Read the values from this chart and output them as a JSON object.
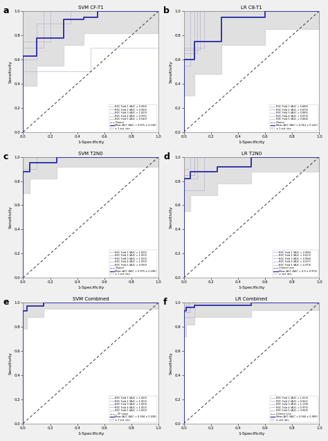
{
  "panels": [
    {
      "label": "a",
      "title": "SVM CF-T1",
      "xlabel": "1-Specificity",
      "ylabel": "Sensitivity",
      "roc_curve": {
        "x": [
          0.0,
          0.0,
          0.1,
          0.1,
          0.3,
          0.3,
          0.45,
          0.45,
          0.55,
          0.55,
          1.0
        ],
        "y": [
          0.0,
          0.63,
          0.63,
          0.78,
          0.78,
          0.93,
          0.93,
          0.95,
          0.95,
          1.0,
          1.0
        ]
      },
      "ci_upper": {
        "x": [
          0.0,
          0.0,
          0.1,
          0.1,
          0.3,
          0.3,
          0.45,
          0.45,
          1.0
        ],
        "y": [
          0.0,
          1.0,
          1.0,
          1.0,
          1.0,
          1.0,
          1.0,
          1.0,
          1.0
        ]
      },
      "ci_lower": {
        "x": [
          0.0,
          0.0,
          0.1,
          0.1,
          0.3,
          0.3,
          0.45,
          0.45,
          1.0
        ],
        "y": [
          0.0,
          0.38,
          0.38,
          0.55,
          0.55,
          0.72,
          0.72,
          0.82,
          0.82
        ]
      },
      "fold_curves": [
        {
          "x": [
            0.0,
            0.0,
            0.15,
            0.15,
            1.0
          ],
          "y": [
            0.0,
            0.7,
            0.7,
            1.0,
            1.0
          ]
        },
        {
          "x": [
            0.0,
            0.0,
            0.1,
            0.1,
            0.35,
            0.35,
            1.0
          ],
          "y": [
            0.0,
            0.6,
            0.6,
            0.9,
            0.9,
            1.0,
            1.0
          ]
        },
        {
          "x": [
            0.0,
            0.0,
            1.0
          ],
          "y": [
            0.0,
            1.0,
            1.0
          ]
        },
        {
          "x": [
            0.0,
            0.0,
            0.2,
            0.2,
            1.0
          ],
          "y": [
            0.0,
            0.75,
            0.75,
            1.0,
            1.0
          ]
        },
        {
          "x": [
            0.0,
            0.0,
            0.5,
            0.5,
            1.0
          ],
          "y": [
            0.0,
            0.5,
            0.5,
            0.7,
            1.0
          ]
        }
      ],
      "legend_lines": [
        "ROC Fold 1 (AUC = 0.990)",
        "ROC Fold 2 (AUC = 0.950)",
        "ROC Fold 3 (AUC = 1.000)",
        "ROC Fold 4 (AUC = 0.975)",
        "ROC Fold 5 (AUC = 0.540)",
        "Chance",
        "Mean AUC (AUC = 0.875 ± 0.194)",
        "± 1 std. dev."
      ],
      "legend_loc": "lower right"
    },
    {
      "label": "b",
      "title": "LR C8-T1",
      "xlabel": "1-Specificity",
      "ylabel": "Sensitivity",
      "roc_curve": {
        "x": [
          0.0,
          0.0,
          0.08,
          0.08,
          0.28,
          0.28,
          0.6,
          0.6,
          0.9,
          0.9,
          1.0
        ],
        "y": [
          0.0,
          0.6,
          0.6,
          0.75,
          0.75,
          0.95,
          0.95,
          1.0,
          1.0,
          1.0,
          1.0
        ]
      },
      "ci_upper": {
        "x": [
          0.0,
          0.0,
          0.08,
          0.08,
          0.28,
          0.28,
          0.6,
          0.6,
          1.0
        ],
        "y": [
          0.0,
          1.0,
          1.0,
          1.0,
          1.0,
          1.0,
          1.0,
          1.0,
          1.0
        ]
      },
      "ci_lower": {
        "x": [
          0.0,
          0.0,
          0.08,
          0.08,
          0.28,
          0.28,
          0.6,
          0.6,
          1.0
        ],
        "y": [
          0.0,
          0.3,
          0.3,
          0.48,
          0.48,
          0.72,
          0.72,
          0.85,
          0.85
        ]
      },
      "fold_curves": [
        {
          "x": [
            0.0,
            0.0,
            0.1,
            0.1,
            1.0
          ],
          "y": [
            0.0,
            0.65,
            0.65,
            1.0,
            1.0
          ]
        },
        {
          "x": [
            0.0,
            0.0,
            0.15,
            0.15,
            1.0
          ],
          "y": [
            0.0,
            0.7,
            0.7,
            1.0,
            1.0
          ]
        },
        {
          "x": [
            0.0,
            0.0,
            0.08,
            0.08,
            1.0
          ],
          "y": [
            0.0,
            0.6,
            0.6,
            1.0,
            1.0
          ]
        },
        {
          "x": [
            0.0,
            0.0,
            0.05,
            0.05,
            1.0
          ],
          "y": [
            0.0,
            0.55,
            0.55,
            1.0,
            1.0
          ]
        },
        {
          "x": [
            0.0,
            0.0,
            0.12,
            0.12,
            1.0
          ],
          "y": [
            0.0,
            0.68,
            0.68,
            1.0,
            1.0
          ]
        }
      ],
      "legend_lines": [
        "ROC Fold 1 (AUC = 0.880)",
        "ROC Fold 2 (AUC = 0.875)",
        "ROC Fold 3 (AUC = 0.885)",
        "ROC Fold 4 (AUC = 0.875)",
        "ROC Fold 5 (AUC = 0.884)",
        "Chance",
        "Mean AUC (AUC = 0.912 ± 0.241)",
        "± 1 std. dev."
      ],
      "legend_loc": "lower right"
    },
    {
      "label": "c",
      "title": "SVM T2N0",
      "xlabel": "1-Specificity",
      "ylabel": "Sensitivity",
      "roc_curve": {
        "x": [
          0.0,
          0.0,
          0.05,
          0.05,
          0.25,
          0.25,
          1.0
        ],
        "y": [
          0.0,
          0.88,
          0.88,
          0.95,
          0.95,
          1.0,
          1.0
        ]
      },
      "ci_upper": {
        "x": [
          0.0,
          0.0,
          0.05,
          0.05,
          0.25,
          0.25,
          1.0
        ],
        "y": [
          0.0,
          1.0,
          1.0,
          1.0,
          1.0,
          1.0,
          1.0
        ]
      },
      "ci_lower": {
        "x": [
          0.0,
          0.0,
          0.05,
          0.05,
          0.25,
          0.25,
          1.0
        ],
        "y": [
          0.0,
          0.7,
          0.7,
          0.82,
          0.82,
          0.92,
          0.92
        ]
      },
      "fold_curves": [
        {
          "x": [
            0.0,
            0.0,
            1.0
          ],
          "y": [
            0.0,
            1.0,
            1.0
          ]
        },
        {
          "x": [
            0.0,
            0.0,
            1.0
          ],
          "y": [
            0.0,
            1.0,
            1.0
          ]
        },
        {
          "x": [
            0.0,
            0.0,
            1.0
          ],
          "y": [
            0.0,
            1.0,
            1.0
          ]
        },
        {
          "x": [
            0.0,
            0.0,
            1.0
          ],
          "y": [
            0.0,
            1.0,
            1.0
          ]
        },
        {
          "x": [
            0.0,
            0.0,
            0.1,
            0.1,
            1.0
          ],
          "y": [
            0.0,
            0.9,
            0.9,
            1.0,
            1.0
          ]
        }
      ],
      "legend_lines": [
        "ROC Fold 1 (AUC = 1.000)",
        "ROC Fold 2 (AUC = 1.000)",
        "ROC Fold 3 (AUC = 1.000)",
        "ROC Fold 4 (AUC = 1.000)",
        "ROC Fold 5 (AUC = 0.990)",
        "Chance",
        "Mean AUC (AUC = 0.975 ± 0.296)",
        "± 1 std. dev."
      ],
      "legend_loc": "lower right"
    },
    {
      "label": "d",
      "title": "LR T2N0",
      "xlabel": "1-Specificity",
      "ylabel": "Sensitivity",
      "roc_curve": {
        "x": [
          0.0,
          0.0,
          0.05,
          0.05,
          0.25,
          0.25,
          0.5,
          0.5,
          1.0
        ],
        "y": [
          0.0,
          0.82,
          0.82,
          0.88,
          0.88,
          0.92,
          0.92,
          1.0,
          1.0
        ]
      },
      "ci_upper": {
        "x": [
          0.0,
          0.0,
          0.05,
          0.05,
          0.25,
          0.25,
          0.5,
          0.5,
          1.0
        ],
        "y": [
          0.0,
          1.0,
          1.0,
          1.0,
          1.0,
          1.0,
          1.0,
          1.0,
          1.0
        ]
      },
      "ci_lower": {
        "x": [
          0.0,
          0.0,
          0.05,
          0.05,
          0.25,
          0.25,
          0.5,
          0.5,
          1.0
        ],
        "y": [
          0.0,
          0.55,
          0.55,
          0.68,
          0.68,
          0.78,
          0.78,
          0.88,
          0.88
        ]
      },
      "fold_curves": [
        {
          "x": [
            0.0,
            0.0,
            0.08,
            0.08,
            1.0
          ],
          "y": [
            0.0,
            0.85,
            0.85,
            1.0,
            1.0
          ]
        },
        {
          "x": [
            0.0,
            0.0,
            0.15,
            0.15,
            1.0
          ],
          "y": [
            0.0,
            0.72,
            0.72,
            1.0,
            1.0
          ]
        },
        {
          "x": [
            0.0,
            0.0,
            0.08,
            0.08,
            1.0
          ],
          "y": [
            0.0,
            0.85,
            0.85,
            1.0,
            1.0
          ]
        },
        {
          "x": [
            0.0,
            0.0,
            0.1,
            0.1,
            1.0
          ],
          "y": [
            0.0,
            0.82,
            0.82,
            1.0,
            1.0
          ]
        },
        {
          "x": [
            0.0,
            0.0,
            0.05,
            0.05,
            1.0
          ],
          "y": [
            0.0,
            0.9,
            0.9,
            1.0,
            1.0
          ]
        }
      ],
      "legend_lines": [
        "ROC Fold 1 (AUC = 0.958)",
        "ROC Fold 2 (AUC = 0.813)",
        "ROC Fold 3 (AUC = 0.958)",
        "ROC Fold 4 (AUC = 0.917)",
        "ROC Fold 5 (AUC = 0.979)",
        "Chance Line",
        "Mean AUC (AUC = 0.9 ± 0.975)",
        "± std. dev."
      ],
      "legend_loc": "lower right"
    },
    {
      "label": "e",
      "title": "SVM Combined",
      "xlabel": "1-Specificity",
      "ylabel": "Sensitivity",
      "roc_curve": {
        "x": [
          0.0,
          0.0,
          0.03,
          0.03,
          0.15,
          0.15,
          1.0
        ],
        "y": [
          0.0,
          0.93,
          0.93,
          0.97,
          0.97,
          1.0,
          1.0
        ]
      },
      "ci_upper": {
        "x": [
          0.0,
          0.0,
          0.03,
          0.03,
          0.15,
          0.15,
          1.0
        ],
        "y": [
          0.0,
          1.0,
          1.0,
          1.0,
          1.0,
          1.0,
          1.0
        ]
      },
      "ci_lower": {
        "x": [
          0.0,
          0.0,
          0.03,
          0.03,
          0.15,
          0.15,
          1.0
        ],
        "y": [
          0.0,
          0.78,
          0.78,
          0.88,
          0.88,
          0.95,
          0.95
        ]
      },
      "fold_curves": [
        {
          "x": [
            0.0,
            0.0,
            1.0
          ],
          "y": [
            0.0,
            1.0,
            1.0
          ]
        },
        {
          "x": [
            0.0,
            0.0,
            1.0
          ],
          "y": [
            0.0,
            1.0,
            1.0
          ]
        },
        {
          "x": [
            0.0,
            0.0,
            1.0
          ],
          "y": [
            0.0,
            1.0,
            1.0
          ]
        },
        {
          "x": [
            0.0,
            0.0,
            1.0
          ],
          "y": [
            0.0,
            1.0,
            1.0
          ]
        },
        {
          "x": [
            0.0,
            0.0,
            1.0
          ],
          "y": [
            0.0,
            1.0,
            1.0
          ]
        }
      ],
      "legend_lines": [
        "ROC Fold 1 (AUC = 1.000)",
        "ROC Fold 2 (AUC = 1.000)",
        "ROC Fold 3 (AUC = 1.000)",
        "ROC Fold 4 (AUC = 1.000)",
        "ROC Fold 5 (AUC = 1.000)",
        "-- CP value",
        "Mean AUC (AUC = 0.994 ± 0.438)",
        "± 1 std. dev."
      ],
      "legend_loc": "lower right"
    },
    {
      "label": "f",
      "title": "LR Combined",
      "xlabel": "1-Specificity",
      "ylabel": "Sensitivity",
      "roc_curve": {
        "x": [
          0.0,
          0.0,
          0.02,
          0.02,
          0.08,
          0.08,
          0.5,
          0.5,
          1.0
        ],
        "y": [
          0.0,
          0.93,
          0.93,
          0.96,
          0.96,
          0.98,
          0.98,
          1.0,
          1.0
        ]
      },
      "ci_upper": {
        "x": [
          0.0,
          0.0,
          0.02,
          0.02,
          0.08,
          0.08,
          0.5,
          0.5,
          1.0
        ],
        "y": [
          0.0,
          1.0,
          1.0,
          1.0,
          1.0,
          1.0,
          1.0,
          1.0,
          1.0
        ]
      },
      "ci_lower": {
        "x": [
          0.0,
          0.0,
          0.02,
          0.02,
          0.08,
          0.08,
          0.5,
          0.5,
          1.0
        ],
        "y": [
          0.0,
          0.72,
          0.72,
          0.82,
          0.82,
          0.88,
          0.88,
          0.94,
          0.94
        ]
      },
      "fold_curves": [
        {
          "x": [
            0.0,
            0.0,
            0.05,
            0.05,
            1.0
          ],
          "y": [
            0.0,
            0.92,
            0.92,
            1.0,
            1.0
          ]
        },
        {
          "x": [
            0.0,
            0.0,
            0.08,
            0.08,
            1.0
          ],
          "y": [
            0.0,
            0.88,
            0.88,
            1.0,
            1.0
          ]
        },
        {
          "x": [
            0.0,
            0.0,
            0.03,
            0.03,
            1.0
          ],
          "y": [
            0.0,
            0.95,
            0.95,
            1.0,
            1.0
          ]
        },
        {
          "x": [
            0.0,
            0.0,
            0.04,
            0.04,
            1.0
          ],
          "y": [
            0.0,
            0.92,
            0.92,
            1.0,
            1.0
          ]
        },
        {
          "x": [
            0.0,
            0.0,
            0.02,
            0.02,
            1.0
          ],
          "y": [
            0.0,
            0.93,
            0.93,
            1.0,
            1.0
          ]
        }
      ],
      "legend_lines": [
        "ROC Fold 1 (AUC = 1.013)",
        "ROC Fold 2 (AUC = 0.921)",
        "ROC Fold 3 (AUC = 1.138)",
        "ROC Fold 4 (AUC = 0.975)",
        "ROC Fold 5 (AUC = 0.990)",
        "Chance Line",
        "Mean AUC (AUC = 0.944 ± 0.969)",
        "± std. dev."
      ],
      "legend_loc": "lower right"
    }
  ],
  "roc_color": "#3333aa",
  "ci_color": "#cccccc",
  "fold_line_color": "#aaaacc",
  "chance_color": "#333333",
  "figure_bg": "#f0f0f0",
  "axes_bg": "#ffffff",
  "tick_labels_a": [
    "0.0",
    "0.2",
    "0.4",
    "0.6",
    "0.8",
    "1.0"
  ],
  "tick_values": [
    0.0,
    0.2,
    0.4,
    0.6,
    0.8,
    1.0
  ]
}
